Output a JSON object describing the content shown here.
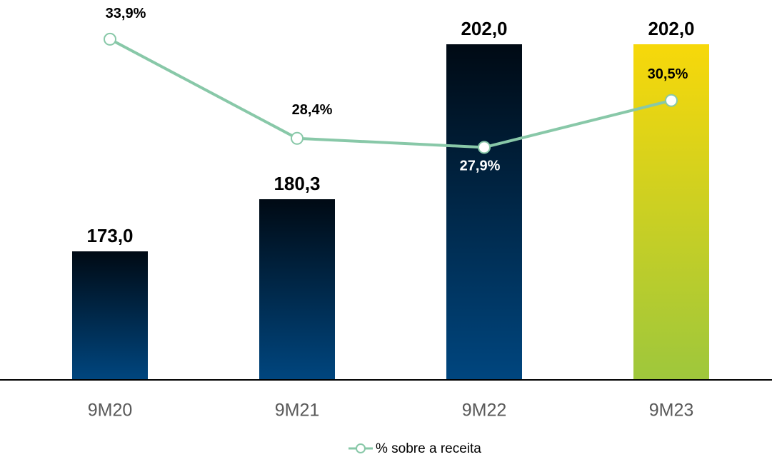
{
  "chart_data": {
    "type": "bar_line",
    "categories": [
      "9M20",
      "9M21",
      "9M22",
      "9M23"
    ],
    "ylim": [
      155,
      207
    ],
    "y2lim": [
      15,
      35.6
    ],
    "series": [
      {
        "type": "bar",
        "colors": [
          [
            "#000a14",
            "#00467f"
          ],
          [
            "#000a14",
            "#00467f"
          ],
          [
            "#000a14",
            "#00467f"
          ],
          [
            "#f7d80a",
            "#9ec73c"
          ]
        ],
        "values": [
          173.0,
          180.3,
          202.0,
          202.0
        ],
        "value_labels": [
          "173,0",
          "180,3",
          "202,0",
          "202,0"
        ]
      },
      {
        "type": "line",
        "name": "% sobre a receita",
        "color": "#88c8a8",
        "axis": "y2",
        "values": [
          33.9,
          28.4,
          27.9,
          30.5
        ],
        "value_labels": [
          "33,9%",
          "28,4%",
          "27,9%",
          "30,5%"
        ]
      }
    ]
  }
}
